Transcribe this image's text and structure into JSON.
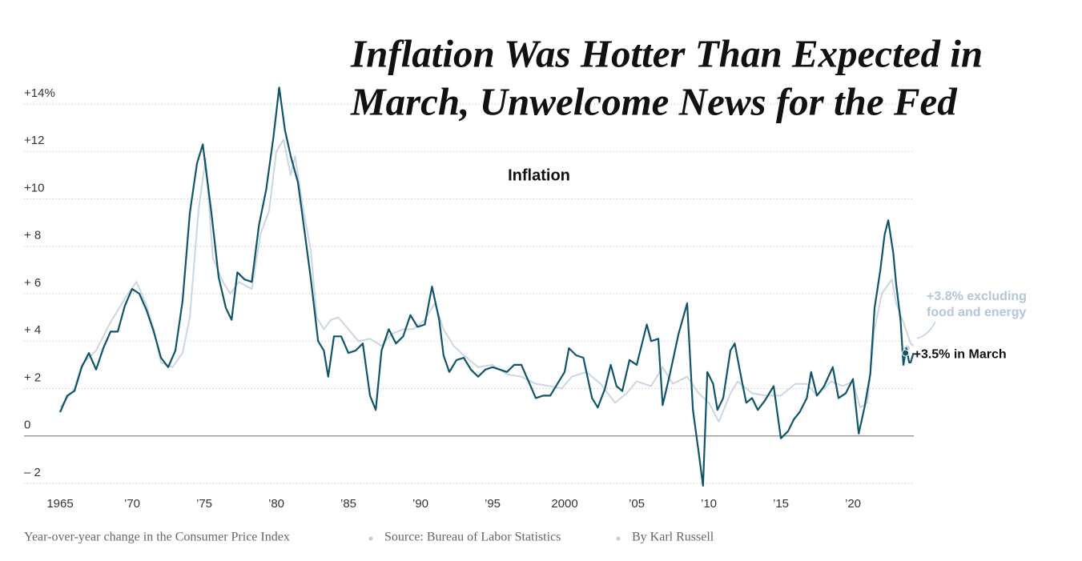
{
  "headline": [
    "Inflation Was Hotter Than Expected in",
    "March, Unwelcome News for the Fed"
  ],
  "footer": [
    "Year-over-year change in the Consumer Price Index",
    "Source: Bureau of Labor Statistics",
    "By Karl Russell"
  ],
  "chart_data": {
    "type": "line",
    "title": "Inflation",
    "xlim": [
      1965,
      2025
    ],
    "xticks": [
      {
        "value": 1965,
        "label": "1965"
      },
      {
        "value": 1970,
        "label": "’70"
      },
      {
        "value": 1975,
        "label": "’75"
      },
      {
        "value": 1980,
        "label": "’80"
      },
      {
        "value": 1985,
        "label": "’85"
      },
      {
        "value": 1990,
        "label": "’90"
      },
      {
        "value": 1995,
        "label": "’95"
      },
      {
        "value": 2000,
        "label": "2000"
      },
      {
        "value": 2005,
        "label": "’05"
      },
      {
        "value": 2010,
        "label": "’10"
      },
      {
        "value": 2015,
        "label": "’15"
      },
      {
        "value": 2020,
        "label": "’20"
      }
    ],
    "ylim": [
      -2,
      14
    ],
    "yticks": [
      {
        "value": 14,
        "label": "+14%"
      },
      {
        "value": 12,
        "label": "+12"
      },
      {
        "value": 10,
        "label": "+10"
      },
      {
        "value": 8,
        "label": "+ 8"
      },
      {
        "value": 6,
        "label": "+ 6"
      },
      {
        "value": 4,
        "label": "+ 4"
      },
      {
        "value": 2,
        "label": "+ 2"
      },
      0,
      {
        "value": -2,
        "label": "– 2"
      }
    ],
    "grid": true,
    "annotations": [
      {
        "lines": [
          "+3.8% excluding",
          "food and energy"
        ],
        "series": 0
      },
      {
        "lines": [
          "+3.5% in March"
        ],
        "series": 1
      }
    ],
    "series": [
      {
        "color": "#c9d6e3",
        "x": [
          1965,
          1966,
          1966.5,
          1967.5,
          1968.5,
          1969.5,
          1970.3,
          1971.0,
          1971.5,
          1972.0,
          1972.8,
          1973.5,
          1974.0,
          1974.6,
          1975.1,
          1975.6,
          1976.3,
          1976.8,
          1977.4,
          1978.3,
          1978.9,
          1979.5,
          1980.0,
          1980.5,
          1981.0,
          1981.3,
          1981.8,
          1982.4,
          1982.8,
          1983.3,
          1983.8,
          1984.3,
          1985.0,
          1985.7,
          1986.5,
          1987.3,
          1988.0,
          1988.8,
          1989.5,
          1990.3,
          1991.0,
          1991.6,
          1992.3,
          1993.0,
          1994.0,
          1995.0,
          1996.0,
          1997.0,
          1998.0,
          1999.0,
          1999.8,
          2000.5,
          2001.5,
          2002.5,
          2003.5,
          2004.3,
          2005.0,
          2006.0,
          2006.8,
          2007.5,
          2008.5,
          2009.3,
          2010.0,
          2010.7,
          2011.5,
          2012.0,
          2013.0,
          2014.0,
          2015.0,
          2016.0,
          2016.8,
          2017.5,
          2018.5,
          2019.3,
          2020.0,
          2020.5,
          2021.0,
          2021.5,
          2022.0,
          2022.7,
          2023.0,
          2023.5,
          2024.0,
          2024.2
        ],
        "values": [
          1.2,
          2.0,
          3.0,
          3.6,
          4.8,
          5.8,
          6.5,
          5.5,
          4.5,
          3.1,
          2.9,
          3.5,
          5.0,
          9.5,
          11.7,
          7.5,
          6.5,
          6.0,
          6.5,
          6.2,
          8.5,
          9.5,
          12.0,
          12.5,
          11.0,
          11.8,
          9.8,
          7.8,
          5.0,
          4.5,
          4.9,
          5.0,
          4.5,
          4.0,
          4.1,
          3.8,
          4.3,
          4.5,
          4.5,
          4.9,
          5.6,
          4.5,
          3.8,
          3.4,
          2.9,
          3.0,
          2.6,
          2.5,
          2.2,
          2.1,
          2.0,
          2.5,
          2.7,
          2.2,
          1.4,
          1.8,
          2.3,
          2.1,
          2.9,
          2.2,
          2.5,
          1.8,
          1.4,
          0.6,
          1.8,
          2.3,
          1.8,
          1.7,
          1.7,
          2.2,
          2.2,
          1.7,
          2.3,
          2.1,
          2.3,
          1.2,
          1.4,
          4.5,
          6.0,
          6.6,
          5.6,
          4.8,
          3.9,
          3.8
        ]
      },
      {
        "color": "#0f5469",
        "x": [
          1965.0,
          1965.5,
          1966.0,
          1966.5,
          1967.0,
          1967.5,
          1968.0,
          1968.5,
          1969.0,
          1969.5,
          1970.0,
          1970.5,
          1971.0,
          1971.5,
          1972.0,
          1972.5,
          1973.0,
          1973.5,
          1974.0,
          1974.5,
          1974.9,
          1975.5,
          1976.0,
          1976.5,
          1976.9,
          1977.3,
          1977.8,
          1978.3,
          1978.8,
          1979.3,
          1979.8,
          1980.2,
          1980.6,
          1981.0,
          1981.5,
          1981.9,
          1982.4,
          1982.9,
          1983.3,
          1983.6,
          1984.0,
          1984.5,
          1985.0,
          1985.5,
          1986.0,
          1986.5,
          1986.9,
          1987.3,
          1987.8,
          1988.3,
          1988.8,
          1989.3,
          1989.8,
          1990.3,
          1990.8,
          1991.3,
          1991.6,
          1992.0,
          1992.5,
          1993.0,
          1993.5,
          1994.0,
          1994.5,
          1995.0,
          1995.5,
          1996.0,
          1996.5,
          1997.0,
          1997.5,
          1998.0,
          1998.5,
          1999.0,
          1999.5,
          2000.0,
          2000.3,
          2000.8,
          2001.3,
          2001.9,
          2002.3,
          2002.8,
          2003.2,
          2003.6,
          2004.0,
          2004.5,
          2005.0,
          2005.7,
          2006.0,
          2006.5,
          2006.8,
          2007.3,
          2007.9,
          2008.5,
          2008.9,
          2009.3,
          2009.6,
          2009.9,
          2010.3,
          2010.6,
          2011.0,
          2011.5,
          2011.8,
          2012.3,
          2012.6,
          2013.0,
          2013.4,
          2013.9,
          2014.5,
          2015.0,
          2015.5,
          2015.9,
          2016.3,
          2016.8,
          2017.1,
          2017.5,
          2018.0,
          2018.6,
          2019.0,
          2019.5,
          2020.0,
          2020.4,
          2020.8,
          2021.2,
          2021.5,
          2021.9,
          2022.2,
          2022.45,
          2022.8,
          2023.0,
          2023.3,
          2023.5,
          2023.7,
          2023.9,
          2024.0,
          2024.2
        ],
        "values": [
          1.0,
          1.7,
          1.9,
          2.9,
          3.5,
          2.8,
          3.7,
          4.4,
          4.4,
          5.5,
          6.2,
          6.0,
          5.3,
          4.4,
          3.3,
          2.9,
          3.6,
          5.7,
          9.4,
          11.5,
          12.3,
          9.4,
          6.7,
          5.4,
          4.9,
          6.9,
          6.6,
          6.5,
          8.9,
          10.4,
          12.6,
          14.7,
          12.9,
          11.8,
          10.7,
          8.9,
          6.6,
          4.0,
          3.6,
          2.5,
          4.2,
          4.2,
          3.5,
          3.6,
          3.9,
          1.7,
          1.1,
          3.6,
          4.5,
          3.9,
          4.2,
          5.1,
          4.6,
          4.7,
          6.3,
          4.9,
          3.4,
          2.7,
          3.2,
          3.3,
          2.8,
          2.5,
          2.8,
          2.9,
          2.8,
          2.7,
          3.0,
          3.0,
          2.3,
          1.6,
          1.7,
          1.7,
          2.2,
          2.7,
          3.7,
          3.4,
          3.3,
          1.6,
          1.2,
          2.0,
          3.0,
          2.1,
          1.9,
          3.2,
          3.0,
          4.7,
          4.0,
          4.1,
          1.3,
          2.6,
          4.3,
          5.6,
          1.1,
          -0.7,
          -2.1,
          2.7,
          2.2,
          1.1,
          1.6,
          3.6,
          3.9,
          2.3,
          1.4,
          1.6,
          1.1,
          1.5,
          2.1,
          -0.1,
          0.2,
          0.7,
          1.0,
          1.6,
          2.7,
          1.7,
          2.1,
          2.9,
          1.6,
          1.8,
          2.4,
          0.1,
          1.2,
          2.6,
          5.4,
          7.0,
          8.5,
          9.1,
          7.7,
          6.4,
          4.9,
          3.0,
          3.7,
          3.1,
          3.1,
          3.5
        ]
      }
    ]
  }
}
